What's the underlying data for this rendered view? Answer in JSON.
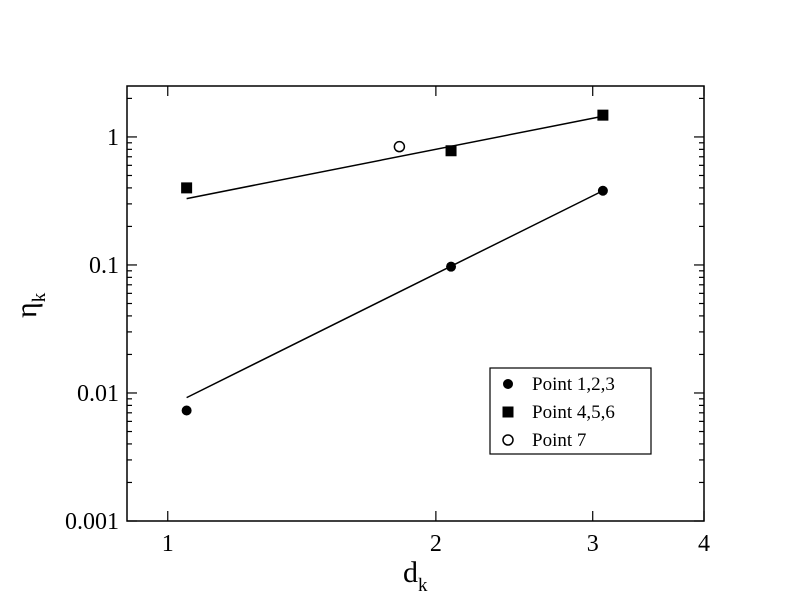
{
  "chart_data": {
    "type": "scatter",
    "x_scale": "log",
    "y_scale": "log",
    "xlim": [
      0.9,
      4
    ],
    "ylim": [
      0.001,
      2.5
    ],
    "x_ticks": [
      "1",
      "2",
      "3",
      "4"
    ],
    "x_tick_values": [
      1,
      2,
      3,
      4
    ],
    "y_ticks": [
      "0.001",
      "0.01",
      "0.1",
      "1"
    ],
    "y_tick_values": [
      0.001,
      0.01,
      0.1,
      1
    ],
    "xlabel": {
      "main": "d",
      "sub": "k"
    },
    "ylabel": {
      "main": "η",
      "sub": "k"
    },
    "legend_position": "bottom-right",
    "series": [
      {
        "name": "Point 1,2,3",
        "marker": "filled-circle",
        "x": [
          1.05,
          2.08,
          3.08
        ],
        "y": [
          0.0073,
          0.097,
          0.38
        ],
        "fit": {
          "x": [
            1.05,
            3.08
          ],
          "y": [
            0.0092,
            0.38
          ]
        }
      },
      {
        "name": "Point 4,5,6",
        "marker": "filled-square",
        "x": [
          1.05,
          2.08,
          3.08
        ],
        "y": [
          0.4,
          0.78,
          1.48
        ],
        "fit": {
          "x": [
            1.05,
            3.08
          ],
          "y": [
            0.33,
            1.45
          ]
        }
      },
      {
        "name": "Point 7",
        "marker": "open-circle",
        "x": [
          1.82
        ],
        "y": [
          0.84
        ]
      }
    ]
  }
}
